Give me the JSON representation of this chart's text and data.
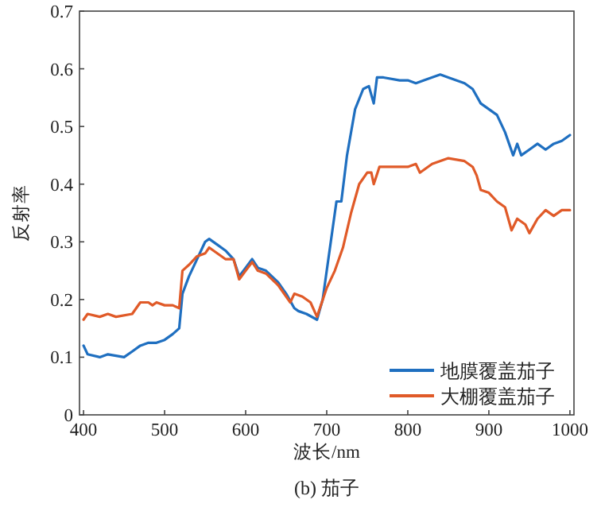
{
  "chart_data": {
    "type": "line",
    "title": "(b) 茄子",
    "xlabel": "波长/nm",
    "ylabel": "反射率",
    "xlim": [
      395,
      1005
    ],
    "ylim": [
      0,
      0.7
    ],
    "xticks": [
      400,
      500,
      600,
      700,
      800,
      900,
      1000
    ],
    "yticks": [
      0,
      0.1,
      0.2,
      0.3,
      0.4,
      0.5,
      0.6,
      0.7
    ],
    "legend": "bottom right",
    "grid": false,
    "marker": "none",
    "line_style": "solid",
    "series": [
      {
        "name": "地膜覆盖茄子",
        "color": "#1f6fc0",
        "x": [
          400,
          405,
          420,
          430,
          450,
          460,
          470,
          480,
          490,
          500,
          510,
          518,
          522,
          530,
          540,
          550,
          555,
          565,
          575,
          585,
          592,
          600,
          608,
          615,
          625,
          640,
          650,
          660,
          665,
          675,
          688,
          695,
          705,
          712,
          718,
          725,
          735,
          745,
          752,
          758,
          762,
          770,
          790,
          800,
          810,
          820,
          840,
          850,
          870,
          880,
          890,
          900,
          910,
          920,
          930,
          935,
          940,
          950,
          960,
          970,
          980,
          990,
          1000
        ],
        "values": [
          0.12,
          0.105,
          0.1,
          0.105,
          0.1,
          0.11,
          0.12,
          0.125,
          0.125,
          0.13,
          0.14,
          0.15,
          0.21,
          0.24,
          0.27,
          0.3,
          0.305,
          0.295,
          0.285,
          0.27,
          0.24,
          0.255,
          0.27,
          0.255,
          0.25,
          0.23,
          0.21,
          0.185,
          0.18,
          0.175,
          0.165,
          0.2,
          0.3,
          0.37,
          0.37,
          0.45,
          0.53,
          0.565,
          0.57,
          0.54,
          0.585,
          0.585,
          0.58,
          0.58,
          0.575,
          0.58,
          0.59,
          0.585,
          0.575,
          0.565,
          0.54,
          0.53,
          0.52,
          0.49,
          0.45,
          0.47,
          0.45,
          0.46,
          0.47,
          0.46,
          0.47,
          0.475,
          0.485
        ]
      },
      {
        "name": "大棚覆盖茄子",
        "color": "#e05a28",
        "x": [
          400,
          405,
          420,
          430,
          440,
          460,
          470,
          480,
          485,
          490,
          500,
          510,
          518,
          522,
          530,
          540,
          550,
          555,
          565,
          575,
          585,
          592,
          600,
          608,
          615,
          625,
          640,
          650,
          655,
          660,
          670,
          680,
          688,
          700,
          710,
          720,
          730,
          740,
          750,
          755,
          758,
          765,
          780,
          800,
          810,
          815,
          830,
          850,
          870,
          880,
          885,
          890,
          900,
          910,
          920,
          928,
          935,
          945,
          950,
          960,
          970,
          980,
          990,
          1000
        ],
        "values": [
          0.165,
          0.175,
          0.17,
          0.175,
          0.17,
          0.175,
          0.195,
          0.195,
          0.19,
          0.195,
          0.19,
          0.19,
          0.185,
          0.25,
          0.26,
          0.275,
          0.28,
          0.29,
          0.28,
          0.27,
          0.27,
          0.235,
          0.25,
          0.265,
          0.25,
          0.245,
          0.225,
          0.205,
          0.195,
          0.21,
          0.205,
          0.195,
          0.17,
          0.22,
          0.25,
          0.29,
          0.35,
          0.4,
          0.42,
          0.42,
          0.4,
          0.43,
          0.43,
          0.43,
          0.435,
          0.42,
          0.435,
          0.445,
          0.44,
          0.43,
          0.415,
          0.39,
          0.385,
          0.37,
          0.36,
          0.32,
          0.34,
          0.33,
          0.315,
          0.34,
          0.355,
          0.345,
          0.355,
          0.355
        ]
      }
    ]
  }
}
